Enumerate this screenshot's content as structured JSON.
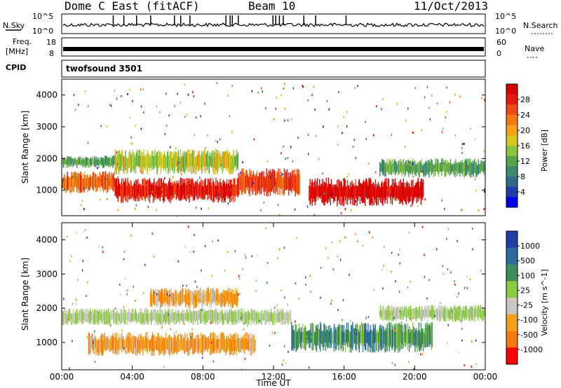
{
  "header": {
    "station": "Dome C East (fitACF)",
    "beam": "Beam 10",
    "date": "11/Oct/2013"
  },
  "noise_panel": {
    "left_label": "N.Sky",
    "right_label": "N.Search",
    "ticks": [
      "10^5",
      "10^0"
    ]
  },
  "freq_panel": {
    "left_label_1": "Freq.",
    "left_label_2": "[MHz]",
    "left_ticks": [
      "18",
      "8"
    ],
    "right_label": "Nave",
    "right_ticks": [
      "60",
      "0"
    ]
  },
  "cpid": {
    "label": "CPID",
    "value": "twofsound 3501"
  },
  "chart_data": [
    {
      "type": "heatmap",
      "title": "",
      "quantity": "Power",
      "ylabel": "Slant Range [km]",
      "y_ticks": [
        1000,
        2000,
        3000,
        4000
      ],
      "ylim": [
        200,
        4500
      ],
      "colorbar_label": "Power [dB]",
      "colorbar_ticks": [
        "4",
        "8",
        "12",
        "16",
        "20",
        "24",
        "28"
      ],
      "colorscale": [
        "#0000ee",
        "#1e3ca8",
        "#2f6b8a",
        "#3e8a6a",
        "#55a64a",
        "#8cc43c",
        "#d6c81c",
        "#f5a21a",
        "#f57a14",
        "#ef4a12",
        "#e41a10",
        "#d80000"
      ],
      "bands": [
        {
          "t0": 0.0,
          "t1": 3.0,
          "r0": 900,
          "r1": 1600,
          "level": 0.75
        },
        {
          "t0": 0.0,
          "t1": 3.0,
          "r0": 1700,
          "r1": 2100,
          "level": 0.35
        },
        {
          "t0": 3.0,
          "t1": 10.0,
          "r0": 600,
          "r1": 1400,
          "level": 0.9
        },
        {
          "t0": 3.0,
          "t1": 10.0,
          "r0": 1500,
          "r1": 2300,
          "level": 0.5
        },
        {
          "t0": 10.0,
          "t1": 13.5,
          "r0": 800,
          "r1": 1700,
          "level": 0.8
        },
        {
          "t0": 14.0,
          "t1": 20.5,
          "r0": 500,
          "r1": 1400,
          "level": 0.95
        },
        {
          "t0": 18.0,
          "t1": 24.0,
          "r0": 1400,
          "r1": 2000,
          "level": 0.35
        }
      ]
    },
    {
      "type": "heatmap",
      "title": "",
      "quantity": "Velocity",
      "xlabel": "Time UT",
      "ylabel": "Slant Range [km]",
      "x_ticks": [
        "00:00",
        "04:00",
        "08:00",
        "12:00",
        "16:00",
        "20:00",
        "00:00"
      ],
      "xlim": [
        0,
        24
      ],
      "y_ticks": [
        1000,
        2000,
        3000,
        4000
      ],
      "ylim": [
        200,
        4500
      ],
      "colorbar_label": "Velocity [m s^-1]",
      "colorbar_ticks": [
        "1000",
        "500",
        "100",
        "25",
        "-25",
        "-100",
        "-500",
        "-1000"
      ],
      "colorscale": [
        "#1f3fa8",
        "#2f6b9a",
        "#3f8d5a",
        "#8ccc40",
        "#c8c8c0",
        "#f5a01a",
        "#f57a10",
        "#ff0000"
      ],
      "bands": [
        {
          "t0": 0.0,
          "t1": 13.0,
          "r0": 1500,
          "r1": 2000,
          "level": 0.5
        },
        {
          "t0": 1.5,
          "t1": 11.0,
          "r0": 600,
          "r1": 1300,
          "level": 0.72
        },
        {
          "t0": 5.0,
          "t1": 10.0,
          "r0": 2000,
          "r1": 2600,
          "level": 0.7
        },
        {
          "t0": 13.0,
          "t1": 21.0,
          "r0": 700,
          "r1": 1600,
          "level": 0.3
        },
        {
          "t0": 18.0,
          "t1": 24.0,
          "r0": 1600,
          "r1": 2100,
          "level": 0.5
        }
      ]
    }
  ]
}
